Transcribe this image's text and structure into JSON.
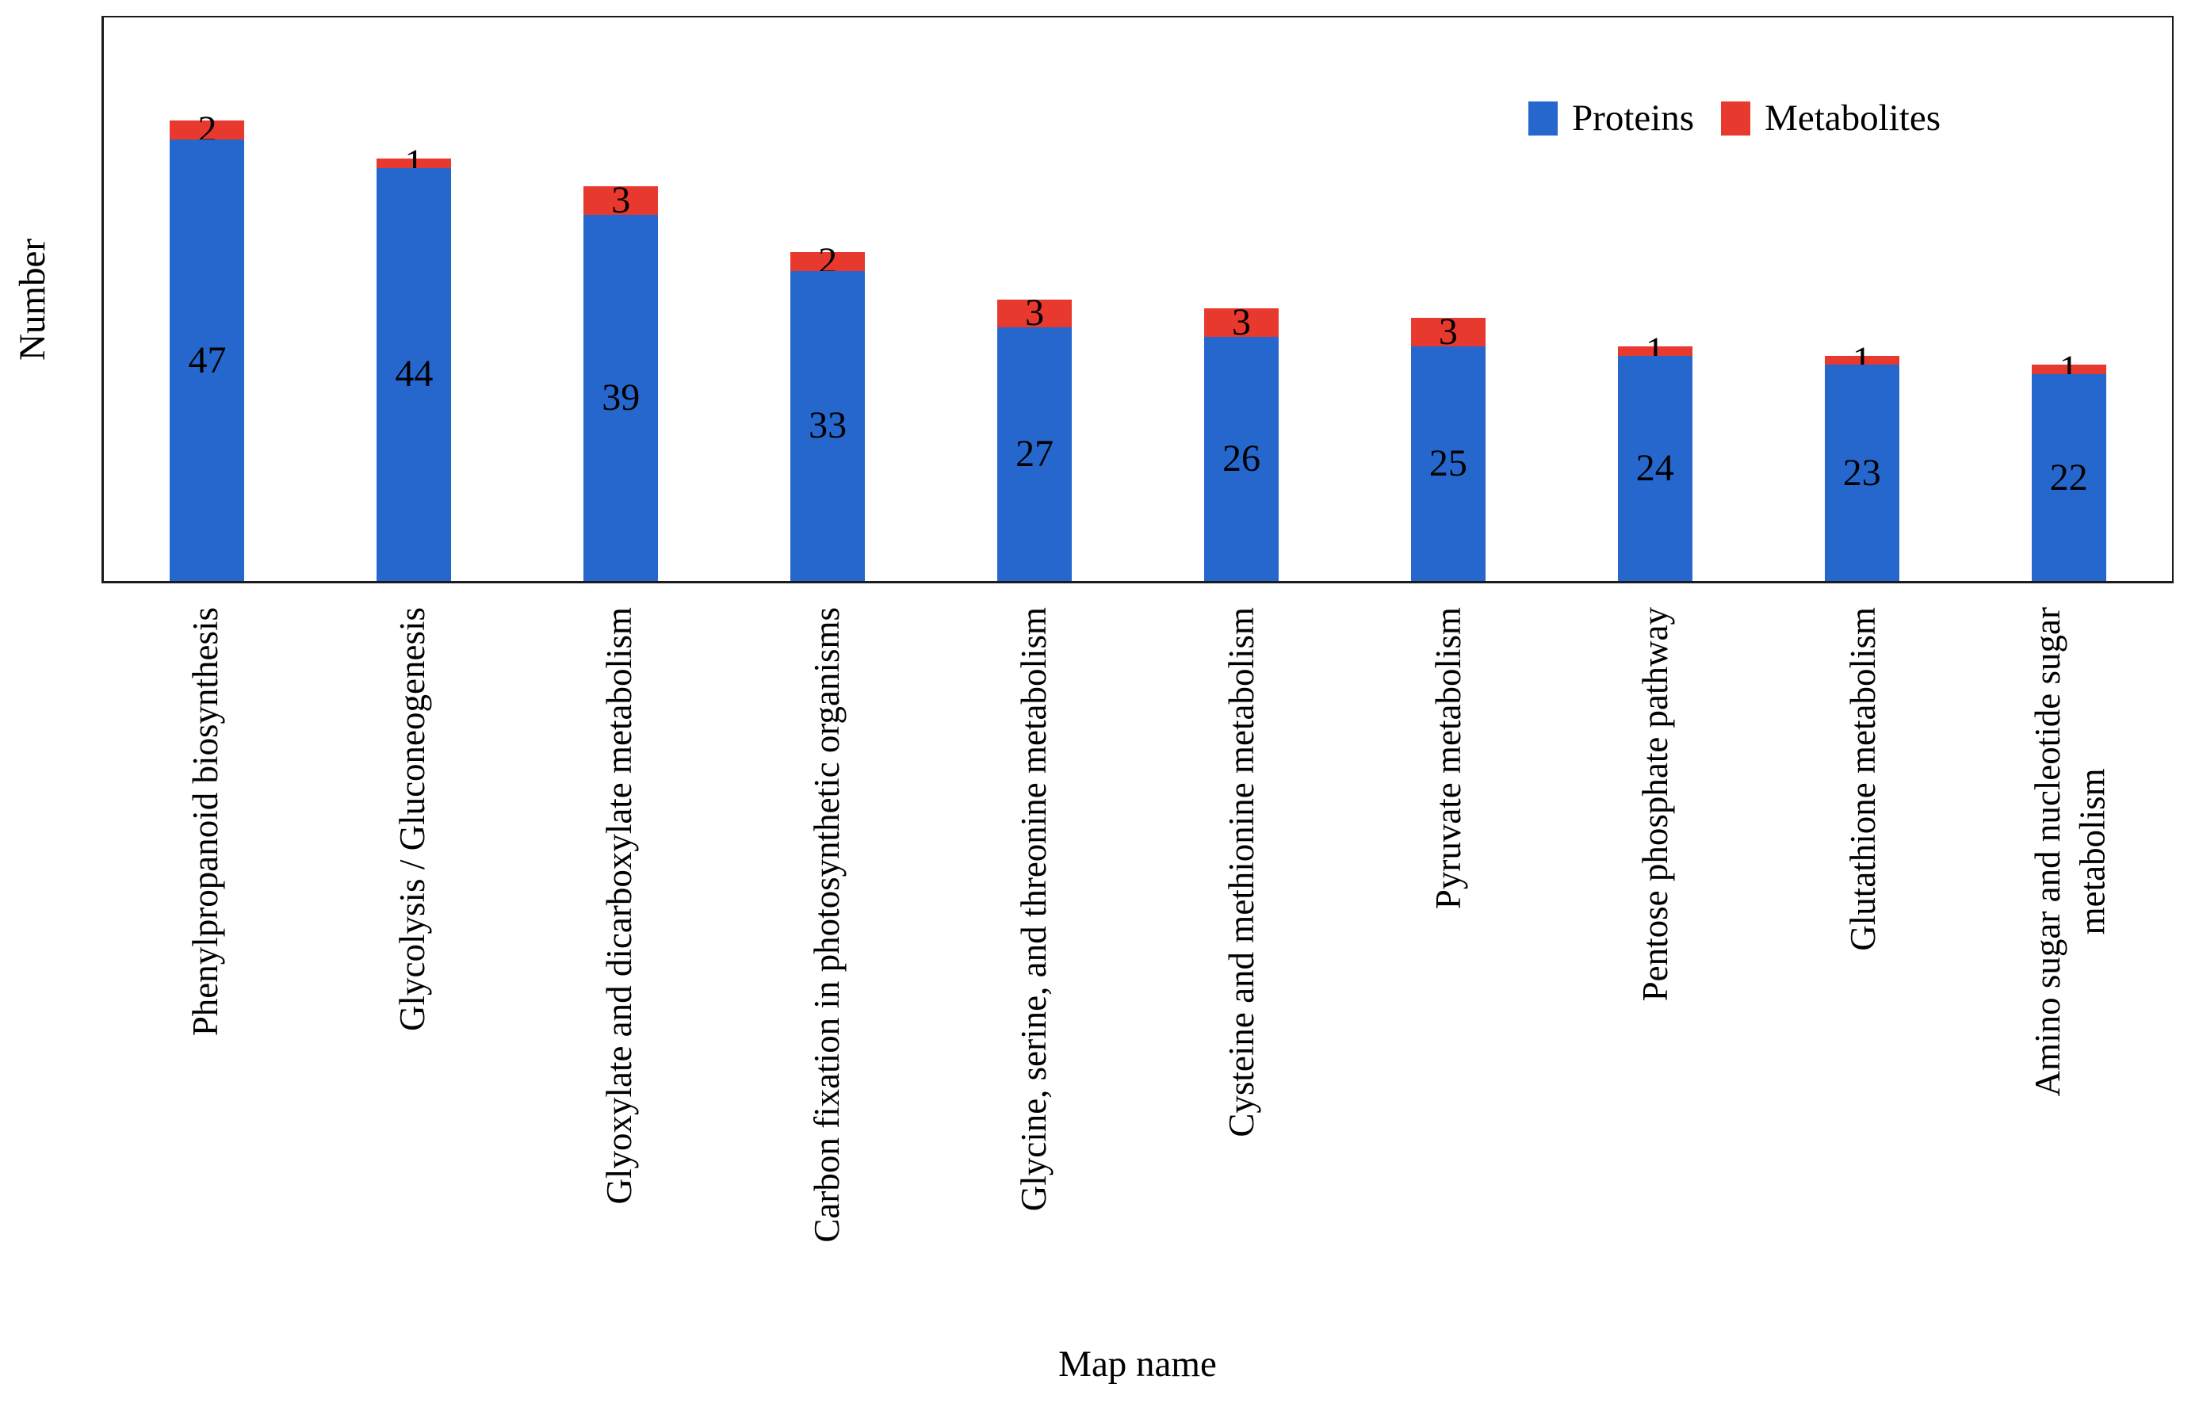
{
  "chart_data": {
    "type": "bar",
    "stacked": true,
    "title": "",
    "xlabel": "Map name",
    "ylabel": "Number",
    "ylim": [
      0,
      60
    ],
    "grid": false,
    "legend_position": "top-right",
    "categories": [
      "Phenylpropanoid biosynthesis",
      "Glycolysis / Gluconeogenesis",
      "Glyoxylate and dicarboxylate metabolism",
      "Carbon fixation in photosynthetic organisms",
      "Glycine, serine, and threonine metabolism",
      "Cysteine and methionine metabolism",
      "Pyruvate metabolism",
      "Pentose phosphate pathway",
      "Glutathione metabolism",
      "Amino sugar and nucleotide sugar\nmetabolism"
    ],
    "series": [
      {
        "name": "Proteins",
        "color": "#2667CE",
        "values": [
          47,
          44,
          39,
          33,
          27,
          26,
          25,
          24,
          23,
          22
        ]
      },
      {
        "name": "Metabolites",
        "color": "#E8392F",
        "values": [
          2,
          1,
          3,
          2,
          3,
          3,
          3,
          1,
          1,
          1
        ]
      }
    ]
  },
  "colors": {
    "proteins_blue": "#2667CE",
    "metabolites_red": "#E8392F",
    "axis": "#1b1b1b",
    "background": "#ffffff",
    "label_text": "#000000"
  }
}
